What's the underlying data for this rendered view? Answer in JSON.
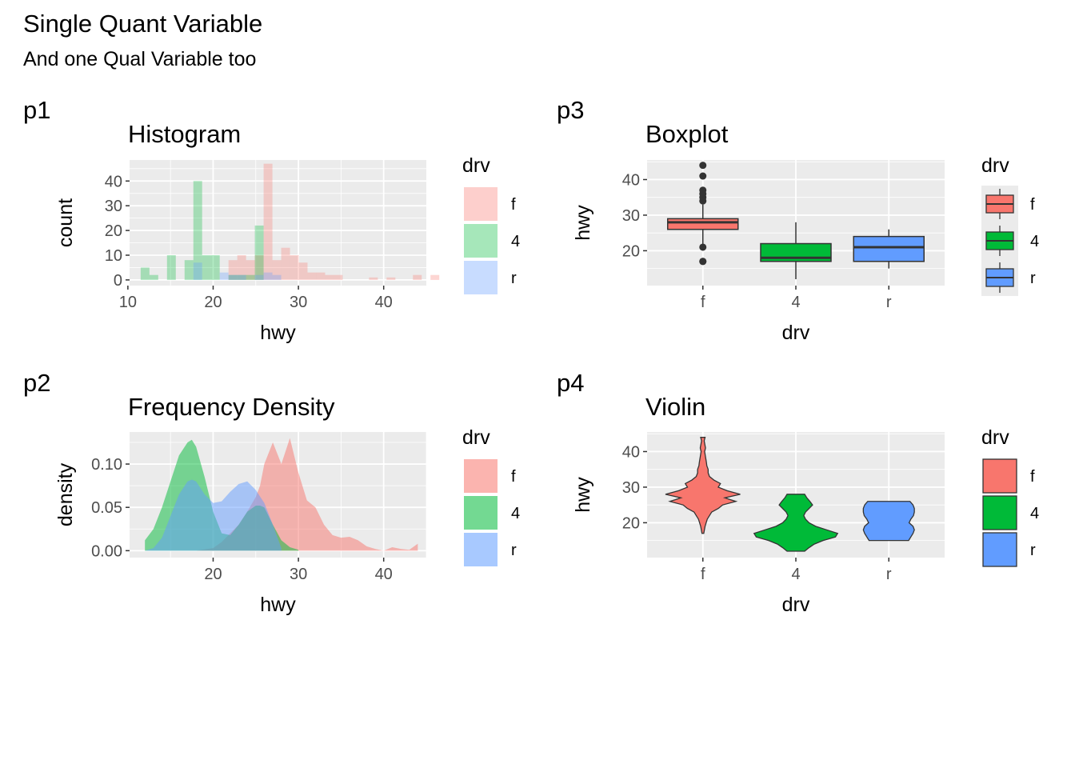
{
  "title": "Single Quant Variable",
  "subtitle": "And one Qual Variable too",
  "colors": {
    "f": "#F8766D",
    "4": "#00BA38",
    "r": "#619CFF",
    "panel": "#EBEBEB",
    "grid": "#FFFFFF"
  },
  "chart_data": [
    {
      "tag": "p1",
      "type": "histogram",
      "title": "Histogram",
      "xlabel": "hwy",
      "ylabel": "count",
      "xlim": [
        10.2,
        45
      ],
      "ylim": [
        -2.3,
        48.5
      ],
      "xticks": [
        10,
        20,
        30,
        40
      ],
      "yticks": [
        0,
        10,
        20,
        30,
        40
      ],
      "bin_width": 1.03,
      "bin_start": 11.5,
      "legend": {
        "title": "drv",
        "items": [
          "f",
          "4",
          "r"
        ],
        "position": "right"
      },
      "series": [
        {
          "name": "f",
          "counts": [
            0,
            0,
            0,
            0,
            0,
            0,
            0,
            0,
            0,
            0,
            8,
            10,
            8,
            10,
            47,
            8,
            13,
            10,
            7,
            3,
            3,
            2,
            2,
            0,
            0,
            0,
            1,
            0,
            1,
            0,
            0,
            2,
            0,
            2
          ]
        },
        {
          "name": "4",
          "counts": [
            5,
            2,
            0,
            10,
            0,
            8,
            40,
            10,
            10,
            0,
            2,
            2,
            2,
            22,
            0,
            0,
            0,
            0,
            0,
            0,
            0,
            0,
            0,
            0,
            0,
            0,
            0,
            0,
            0,
            0,
            0,
            0,
            0,
            0
          ]
        },
        {
          "name": "r",
          "counts": [
            0,
            0,
            0,
            0,
            0,
            0,
            7,
            0,
            0,
            3,
            2,
            2,
            0,
            2,
            3,
            2,
            0,
            0,
            0,
            0,
            0,
            0,
            0,
            0,
            0,
            0,
            0,
            0,
            0,
            0,
            0,
            0,
            0,
            0
          ]
        }
      ]
    },
    {
      "tag": "p2",
      "type": "area",
      "title": "Frequency Density",
      "xlabel": "hwy",
      "ylabel": "density",
      "xlim": [
        10.2,
        45
      ],
      "ylim": [
        -0.008,
        0.137
      ],
      "xticks": [
        20,
        30,
        40
      ],
      "yticks": [
        0,
        0.05,
        0.1
      ],
      "ytick_labels": [
        "0.00",
        "0.05",
        "0.10"
      ],
      "legend": {
        "title": "drv",
        "items": [
          "f",
          "4",
          "r"
        ],
        "position": "right"
      },
      "series": [
        {
          "name": "f",
          "x": [
            12,
            14,
            16,
            18,
            20,
            21,
            22,
            23,
            24,
            25,
            25.5,
            26,
            27,
            28,
            29,
            30,
            31,
            32,
            33,
            34,
            35,
            36,
            37,
            38,
            39,
            40,
            41,
            42,
            43,
            44
          ],
          "y": [
            0,
            0,
            0,
            0,
            0.003,
            0.01,
            0.02,
            0.03,
            0.045,
            0.062,
            0.075,
            0.1,
            0.125,
            0.1,
            0.13,
            0.09,
            0.058,
            0.05,
            0.03,
            0.018,
            0.015,
            0.016,
            0.012,
            0.005,
            0.002,
            0,
            0.004,
            0.002,
            0.001,
            0.008
          ]
        },
        {
          "name": "4",
          "x": [
            12,
            13,
            14,
            15,
            16,
            17,
            17.5,
            18,
            19,
            20,
            21,
            22,
            23,
            24,
            25,
            25.5,
            26,
            27,
            28,
            29,
            30
          ],
          "y": [
            0.012,
            0.025,
            0.05,
            0.08,
            0.11,
            0.125,
            0.128,
            0.12,
            0.085,
            0.045,
            0.02,
            0.018,
            0.03,
            0.045,
            0.052,
            0.052,
            0.05,
            0.03,
            0.012,
            0.004,
            0.001
          ]
        },
        {
          "name": "r",
          "x": [
            12,
            13,
            14,
            15,
            16,
            17,
            17.5,
            18,
            19,
            20,
            21,
            22,
            23,
            24,
            25,
            26,
            27,
            28
          ],
          "y": [
            0,
            0.003,
            0.015,
            0.04,
            0.065,
            0.08,
            0.082,
            0.08,
            0.065,
            0.055,
            0.057,
            0.068,
            0.077,
            0.08,
            0.07,
            0.055,
            0.03,
            0.003
          ]
        }
      ]
    },
    {
      "tag": "p3",
      "type": "boxplot",
      "title": "Boxplot",
      "xlabel": "drv",
      "ylabel": "hwy",
      "categories": [
        "f",
        "4",
        "r"
      ],
      "ylim": [
        10.2,
        45.5
      ],
      "yticks": [
        20,
        30,
        40
      ],
      "legend": {
        "title": "drv",
        "items": [
          "f",
          "4",
          "r"
        ],
        "position": "right"
      },
      "boxes": [
        {
          "name": "f",
          "min": 21,
          "q1": 26,
          "median": 28,
          "q3": 29,
          "max": 33,
          "outliers": [
            17,
            17,
            21,
            34,
            35,
            36,
            37,
            41,
            44
          ]
        },
        {
          "name": "4",
          "min": 12,
          "q1": 17,
          "median": 18,
          "q3": 22,
          "max": 28,
          "outliers": []
        },
        {
          "name": "r",
          "min": 15,
          "q1": 17,
          "median": 21,
          "q3": 24,
          "max": 26,
          "outliers": []
        }
      ]
    },
    {
      "tag": "p4",
      "type": "violin",
      "title": "Violin",
      "xlabel": "drv",
      "ylabel": "hwy",
      "categories": [
        "f",
        "4",
        "r"
      ],
      "ylim": [
        10.2,
        45.5
      ],
      "yticks": [
        20,
        30,
        40
      ],
      "legend": {
        "title": "drv",
        "items": [
          "f",
          "4",
          "r"
        ],
        "position": "right"
      },
      "violins": [
        {
          "name": "f",
          "y": [
            17,
            19,
            21,
            23,
            24,
            25,
            26,
            26.5,
            27,
            28,
            29,
            30,
            31,
            32,
            33,
            34,
            35,
            36,
            37,
            40,
            41,
            43,
            44
          ],
          "w": [
            0.02,
            0.05,
            0.1,
            0.2,
            0.35,
            0.45,
            0.75,
            0.62,
            0.5,
            0.85,
            0.55,
            0.35,
            0.4,
            0.25,
            0.15,
            0.12,
            0.12,
            0.09,
            0.08,
            0.04,
            0.06,
            0.03,
            0.05
          ]
        },
        {
          "name": "4",
          "y": [
            12,
            13,
            14,
            15,
            16,
            17,
            18,
            19,
            20,
            21,
            22,
            23,
            24,
            25,
            26,
            27,
            28
          ],
          "w": [
            0.2,
            0.3,
            0.42,
            0.62,
            0.9,
            0.95,
            0.7,
            0.45,
            0.3,
            0.22,
            0.18,
            0.22,
            0.3,
            0.38,
            0.32,
            0.25,
            0.2
          ]
        },
        {
          "name": "r",
          "y": [
            15,
            16,
            17,
            18,
            19,
            20,
            21,
            22,
            23,
            24,
            25,
            26
          ],
          "w": [
            0.45,
            0.5,
            0.55,
            0.58,
            0.55,
            0.46,
            0.5,
            0.56,
            0.58,
            0.58,
            0.55,
            0.48
          ]
        }
      ]
    }
  ]
}
